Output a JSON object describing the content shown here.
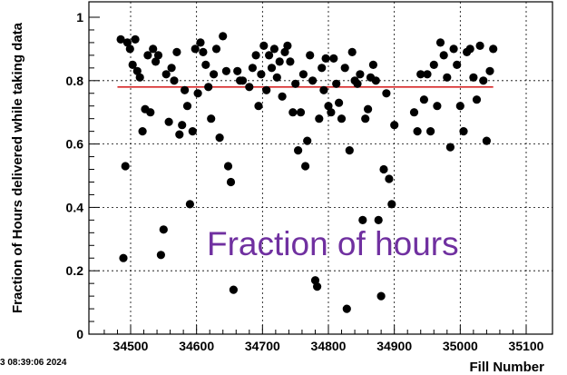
{
  "timestamp_text": "3 08:39:06 2024",
  "overlay_text": "Fraction of hours",
  "colors": {
    "marker": "#000000",
    "mean_line": "#d62728",
    "overlay": "#7030a0",
    "grid": "#000000"
  },
  "chart_data": {
    "type": "scatter",
    "title": "",
    "xlabel": "Fill Number",
    "ylabel": "Fraction of Hours delivered while taking data",
    "xlim": [
      34440,
      35110
    ],
    "ylim": [
      0,
      1.0
    ],
    "x_ticks": [
      34500,
      34600,
      34700,
      34800,
      34900,
      35000,
      35100
    ],
    "y_ticks": [
      0,
      0.2,
      0.4,
      0.6,
      0.8,
      1
    ],
    "grid": true,
    "reference_line": {
      "y": 0.78,
      "x_start": 34480,
      "x_end": 35050,
      "label": ""
    },
    "series": [
      {
        "marker": "circle",
        "points": [
          [
            34485,
            0.93
          ],
          [
            34489,
            0.24
          ],
          [
            34492,
            0.53
          ],
          [
            34495,
            0.92
          ],
          [
            34499,
            0.9
          ],
          [
            34503,
            0.85
          ],
          [
            34507,
            0.93
          ],
          [
            34510,
            0.83
          ],
          [
            34514,
            0.81
          ],
          [
            34518,
            0.64
          ],
          [
            34522,
            0.71
          ],
          [
            34526,
            0.88
          ],
          [
            34530,
            0.7
          ],
          [
            34534,
            0.9
          ],
          [
            34538,
            0.86
          ],
          [
            34542,
            0.88
          ],
          [
            34546,
            0.25
          ],
          [
            34550,
            0.33
          ],
          [
            34554,
            0.82
          ],
          [
            34558,
            0.67
          ],
          [
            34562,
            0.84
          ],
          [
            34566,
            0.8
          ],
          [
            34570,
            0.89
          ],
          [
            34574,
            0.63
          ],
          [
            34578,
            0.66
          ],
          [
            34582,
            0.77
          ],
          [
            34586,
            0.72
          ],
          [
            34590,
            0.41
          ],
          [
            34594,
            0.64
          ],
          [
            34598,
            0.9
          ],
          [
            34602,
            0.76
          ],
          [
            34606,
            0.92
          ],
          [
            34610,
            0.89
          ],
          [
            34614,
            0.85
          ],
          [
            34618,
            0.78
          ],
          [
            34622,
            0.68
          ],
          [
            34626,
            0.82
          ],
          [
            34630,
            0.9
          ],
          [
            34635,
            0.62
          ],
          [
            34640,
            0.94
          ],
          [
            34645,
            0.83
          ],
          [
            34648,
            0.53
          ],
          [
            34652,
            0.48
          ],
          [
            34656,
            0.14
          ],
          [
            34662,
            0.83
          ],
          [
            34666,
            0.8
          ],
          [
            34670,
            0.8
          ],
          [
            34680,
            0.78
          ],
          [
            34685,
            0.84
          ],
          [
            34690,
            0.88
          ],
          [
            34694,
            0.72
          ],
          [
            34698,
            0.82
          ],
          [
            34702,
            0.91
          ],
          [
            34706,
            0.77
          ],
          [
            34710,
            0.88
          ],
          [
            34714,
            0.84
          ],
          [
            34718,
            0.9
          ],
          [
            34722,
            0.81
          ],
          [
            34726,
            0.86
          ],
          [
            34730,
            0.75
          ],
          [
            34734,
            0.89
          ],
          [
            34738,
            0.91
          ],
          [
            34742,
            0.86
          ],
          [
            34746,
            0.7
          ],
          [
            34750,
            0.79
          ],
          [
            34754,
            0.58
          ],
          [
            34758,
            0.7
          ],
          [
            34762,
            0.82
          ],
          [
            34765,
            0.53
          ],
          [
            34768,
            0.61
          ],
          [
            34772,
            0.88
          ],
          [
            34776,
            0.8
          ],
          [
            34780,
            0.17
          ],
          [
            34783,
            0.15
          ],
          [
            34786,
            0.68
          ],
          [
            34790,
            0.84
          ],
          [
            34793,
            0.77
          ],
          [
            34796,
            0.87
          ],
          [
            34800,
            0.72
          ],
          [
            34804,
            0.7
          ],
          [
            34808,
            0.87
          ],
          [
            34812,
            0.79
          ],
          [
            34816,
            0.73
          ],
          [
            34820,
            0.68
          ],
          [
            34825,
            0.84
          ],
          [
            34828,
            0.08
          ],
          [
            34832,
            0.58
          ],
          [
            34836,
            0.89
          ],
          [
            34840,
            0.8
          ],
          [
            34844,
            0.79
          ],
          [
            34848,
            0.82
          ],
          [
            34852,
            0.36
          ],
          [
            34856,
            0.68
          ],
          [
            34860,
            0.71
          ],
          [
            34864,
            0.81
          ],
          [
            34868,
            0.85
          ],
          [
            34872,
            0.8
          ],
          [
            34876,
            0.36
          ],
          [
            34880,
            0.12
          ],
          [
            34884,
            0.52
          ],
          [
            34888,
            0.76
          ],
          [
            34892,
            0.49
          ],
          [
            34896,
            0.41
          ],
          [
            34900,
            0.66
          ],
          [
            34930,
            0.7
          ],
          [
            34935,
            0.64
          ],
          [
            34940,
            0.82
          ],
          [
            34945,
            0.74
          ],
          [
            34950,
            0.82
          ],
          [
            34955,
            0.64
          ],
          [
            34960,
            0.85
          ],
          [
            34965,
            0.72
          ],
          [
            34970,
            0.92
          ],
          [
            34975,
            0.88
          ],
          [
            34980,
            0.81
          ],
          [
            34985,
            0.59
          ],
          [
            34990,
            0.9
          ],
          [
            34995,
            0.85
          ],
          [
            35000,
            0.72
          ],
          [
            35005,
            0.64
          ],
          [
            35010,
            0.89
          ],
          [
            35015,
            0.9
          ],
          [
            35020,
            0.81
          ],
          [
            35025,
            0.74
          ],
          [
            35030,
            0.91
          ],
          [
            35035,
            0.8
          ],
          [
            35040,
            0.61
          ],
          [
            35045,
            0.83
          ],
          [
            35050,
            0.9
          ]
        ]
      }
    ]
  }
}
